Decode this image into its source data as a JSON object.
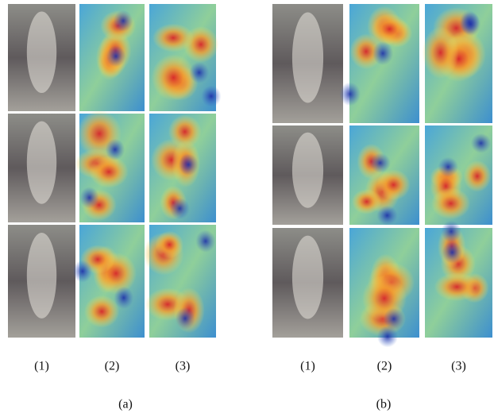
{
  "panels": [
    {
      "caption": "(a)",
      "columns": [
        "(1)",
        "(2)",
        "(3)"
      ]
    },
    {
      "caption": "(b)",
      "columns": [
        "(1)",
        "(2)",
        "(3)"
      ]
    }
  ]
}
